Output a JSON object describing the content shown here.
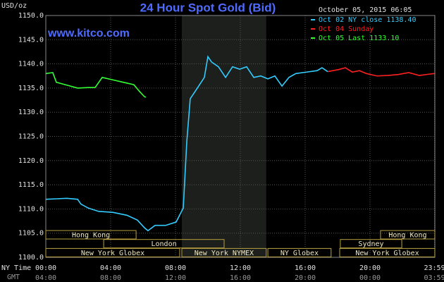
{
  "chart_data": {
    "type": "line",
    "title": "24 Hour Spot Gold (Bid)",
    "subtitle": "October 05, 2015 06:05",
    "ylabel": "USD/oz",
    "watermark": "www.kitco.com",
    "xlim": [
      0,
      24
    ],
    "ylim": [
      1100,
      1150
    ],
    "yticks": [
      {
        "value": 1100,
        "label": "1100.0"
      },
      {
        "value": 1105,
        "label": "1105.0"
      },
      {
        "value": 1110,
        "label": "1110.0"
      },
      {
        "value": 1115,
        "label": "1115.0"
      },
      {
        "value": 1120,
        "label": "1120.0"
      },
      {
        "value": 1125,
        "label": "1125.0"
      },
      {
        "value": 1130,
        "label": "1130.0"
      },
      {
        "value": 1135,
        "label": "1135.0"
      },
      {
        "value": 1140,
        "label": "1140.0"
      },
      {
        "value": 1145,
        "label": "1145.0"
      },
      {
        "value": 1150,
        "label": "1150.0"
      }
    ],
    "xticks": [
      {
        "value": 0,
        "label": "00:00"
      },
      {
        "value": 4,
        "label": "04:00"
      },
      {
        "value": 8,
        "label": "08:00"
      },
      {
        "value": 12,
        "label": "12:00"
      },
      {
        "value": 16,
        "label": "16:00"
      },
      {
        "value": 20,
        "label": "20:00"
      },
      {
        "value": 23.98,
        "label": "23:59"
      }
    ],
    "x2ticklabels": [
      "04:00",
      "08:00",
      "12:00",
      "16:00",
      "20:00",
      "00:00",
      "03:59"
    ],
    "x_row_labels": [
      "NY Time",
      "GMT"
    ],
    "grid": true,
    "legend": "upper right",
    "series": [
      {
        "name": "Oct 02 NY close 1138.40",
        "color": "#33ccff",
        "x": [
          0,
          0.65,
          1.3,
          1.96,
          2.17,
          2.61,
          3.26,
          4.13,
          5,
          5.65,
          6.09,
          6.3,
          6.74,
          7.39,
          8.04,
          8.48,
          8.7,
          8.91,
          9.35,
          9.78,
          10,
          10.22,
          10.65,
          11.09,
          11.52,
          11.96,
          12.39,
          12.83,
          13.26,
          13.7,
          14.13,
          14.57,
          15,
          15.43,
          16.09,
          16.74,
          17.04,
          17.39
        ],
        "values": [
          1112.0,
          1112.1,
          1112.2,
          1112.0,
          1111.0,
          1110.2,
          1109.5,
          1109.3,
          1108.7,
          1107.7,
          1106.1,
          1105.5,
          1106.6,
          1106.6,
          1107.3,
          1110.2,
          1124.0,
          1132.8,
          1135.0,
          1137.2,
          1141.5,
          1140.4,
          1139.4,
          1137.2,
          1139.4,
          1138.9,
          1139.4,
          1137.2,
          1137.5,
          1136.9,
          1137.5,
          1135.4,
          1137.2,
          1138.0,
          1138.3,
          1138.6,
          1139.2,
          1138.4
        ]
      },
      {
        "name": "Oct 04 Sunday",
        "color": "#ff2020",
        "x": [
          17.39,
          18.04,
          18.48,
          18.91,
          19.35,
          19.78,
          20.43,
          21.09,
          21.74,
          22.39,
          23.04,
          23.7,
          23.98
        ],
        "values": [
          1138.4,
          1138.8,
          1139.2,
          1138.3,
          1138.6,
          1138.0,
          1137.5,
          1137.6,
          1137.8,
          1138.2,
          1137.6,
          1137.9,
          1138.0
        ]
      },
      {
        "name": "Oct 05 Last 1133.10",
        "color": "#33ff33",
        "x": [
          0,
          0.43,
          0.65,
          1.3,
          1.96,
          2.61,
          3.04,
          3.48,
          4.13,
          4.78,
          5.43,
          5.78,
          6.09,
          6.17
        ],
        "values": [
          1138.0,
          1138.2,
          1136.2,
          1135.6,
          1135.0,
          1135.1,
          1135.1,
          1137.2,
          1136.7,
          1136.2,
          1135.7,
          1134.3,
          1133.2,
          1133.1
        ]
      }
    ],
    "sessions": [
      {
        "label": "Hong Kong",
        "start": 0,
        "end": 5.57,
        "row": 0
      },
      {
        "label": "Hong Kong",
        "start": 20.65,
        "end": 24,
        "row": 0
      },
      {
        "label": "London",
        "start": 3.57,
        "end": 11,
        "row": 1
      },
      {
        "label": "Sydney",
        "start": 18.17,
        "end": 21.96,
        "row": 1
      },
      {
        "label": "New York Globex",
        "start": 0,
        "end": 8.26,
        "row": 2
      },
      {
        "label": "New York NYMEX",
        "start": 8.39,
        "end": 13.6,
        "row": 2,
        "shaded": true
      },
      {
        "label": "NY Globex",
        "start": 13.7,
        "end": 17.6,
        "row": 2
      },
      {
        "label": "New York Globex",
        "start": 18.13,
        "end": 24,
        "row": 2
      }
    ]
  }
}
